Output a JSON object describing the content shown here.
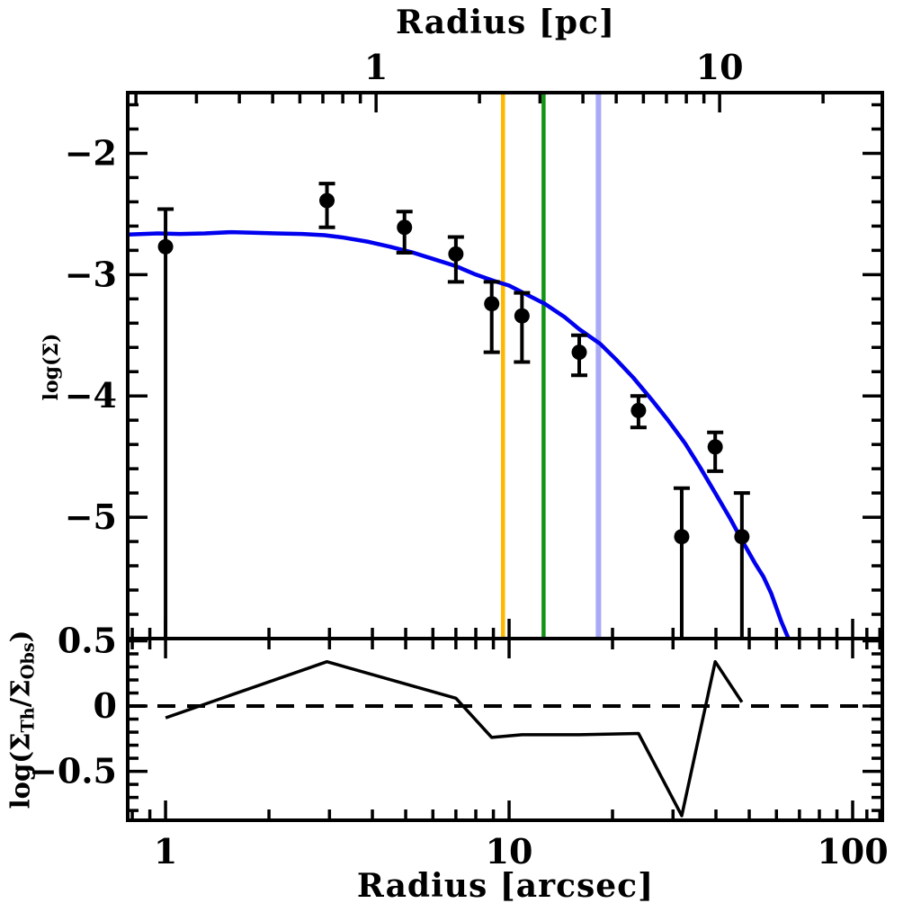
{
  "colors": {
    "background": "#ffffff",
    "axis": "#000000",
    "model_curve": "#0000ee",
    "data_points": "#000000",
    "residual_curve": "#000000",
    "vline_orange": "#ffb800",
    "vline_green": "#149414",
    "vline_lavender": "#a9a9f7"
  },
  "labels": {
    "top_axis_title": "Radius [pc]",
    "bottom_axis_title": "Radius [arcsec]",
    "main_y_title": "log(Σ)",
    "residual_y_title": {
      "prefix": "log(Σ",
      "sub1": "Th",
      "mid": "/Σ",
      "sub2": "Obs",
      "suffix": ")"
    }
  },
  "chart_data": [
    {
      "panel": "main",
      "type": "scatter",
      "x_scale": "log",
      "x_unit": "arcsec",
      "xlim": [
        0.776,
        122
      ],
      "ylim": [
        -6.0,
        -1.5
      ],
      "grid": false,
      "x_ticks": {
        "major": [
          1,
          10,
          100
        ],
        "labels": [
          "1",
          "10",
          "100"
        ]
      },
      "top_axis": {
        "unit": "pc",
        "arcsec_per_pc": 4.1,
        "major": [
          1,
          10
        ],
        "labels": [
          "1",
          "10"
        ]
      },
      "y_ticks": {
        "major": [
          -2,
          -3,
          -4,
          -5
        ],
        "labels": [
          "−2",
          "−3",
          "−4",
          "−5"
        ],
        "minor_step": 0.2
      },
      "points": [
        {
          "r": 1.0,
          "v": -2.77,
          "hi": -2.46,
          "lo": -6.0,
          "lo_to_edge": true
        },
        {
          "r": 2.95,
          "v": -2.39,
          "hi": -2.25,
          "lo": -2.61,
          "lo_to_edge": false
        },
        {
          "r": 4.96,
          "v": -2.61,
          "hi": -2.48,
          "lo": -2.82,
          "lo_to_edge": false
        },
        {
          "r": 7.0,
          "v": -2.83,
          "hi": -2.69,
          "lo": -3.06,
          "lo_to_edge": false
        },
        {
          "r": 8.9,
          "v": -3.24,
          "hi": -3.06,
          "lo": -3.64,
          "lo_to_edge": false
        },
        {
          "r": 10.9,
          "v": -3.34,
          "hi": -3.15,
          "lo": -3.72,
          "lo_to_edge": false
        },
        {
          "r": 16.0,
          "v": -3.64,
          "hi": -3.5,
          "lo": -3.83,
          "lo_to_edge": false
        },
        {
          "r": 23.8,
          "v": -4.12,
          "hi": -4.0,
          "lo": -4.26,
          "lo_to_edge": false
        },
        {
          "r": 31.8,
          "v": -5.16,
          "hi": -4.76,
          "lo": -6.0,
          "lo_to_edge": true
        },
        {
          "r": 39.8,
          "v": -4.42,
          "hi": -4.3,
          "lo": -4.62,
          "lo_to_edge": false
        },
        {
          "r": 47.6,
          "v": -5.16,
          "hi": -4.8,
          "lo": -6.0,
          "lo_to_edge": true
        }
      ],
      "model_curve": [
        [
          0.78,
          -2.67
        ],
        [
          0.95,
          -2.66
        ],
        [
          1.1,
          -2.665
        ],
        [
          1.3,
          -2.66
        ],
        [
          1.55,
          -2.65
        ],
        [
          1.8,
          -2.655
        ],
        [
          2.1,
          -2.66
        ],
        [
          2.5,
          -2.665
        ],
        [
          2.9,
          -2.675
        ],
        [
          3.3,
          -2.695
        ],
        [
          3.9,
          -2.73
        ],
        [
          4.5,
          -2.77
        ],
        [
          5.2,
          -2.815
        ],
        [
          6.0,
          -2.87
        ],
        [
          7.0,
          -2.93
        ],
        [
          8.0,
          -3.0
        ],
        [
          9.0,
          -3.05
        ],
        [
          10.0,
          -3.09
        ],
        [
          11.0,
          -3.15
        ],
        [
          12.7,
          -3.24
        ],
        [
          14.5,
          -3.35
        ],
        [
          16.0,
          -3.45
        ],
        [
          18.4,
          -3.57
        ],
        [
          20.5,
          -3.7
        ],
        [
          23.0,
          -3.85
        ],
        [
          26.0,
          -4.03
        ],
        [
          29.0,
          -4.2
        ],
        [
          32.5,
          -4.39
        ],
        [
          36.0,
          -4.59
        ],
        [
          39.8,
          -4.8
        ],
        [
          44.0,
          -5.01
        ],
        [
          47.6,
          -5.19
        ],
        [
          52.0,
          -5.38
        ],
        [
          55.0,
          -5.49
        ],
        [
          58.0,
          -5.63
        ],
        [
          62.0,
          -5.86
        ],
        [
          65.5,
          -6.02
        ]
      ],
      "vlines": [
        {
          "r": 9.6,
          "color": "#ffb800",
          "width": 4.5,
          "name": "vline-orange"
        },
        {
          "r": 12.6,
          "color": "#149414",
          "width": 4.5,
          "name": "vline-green"
        },
        {
          "r": 18.2,
          "color": "#a9a9f7",
          "width": 6,
          "name": "vline-lavender"
        }
      ]
    },
    {
      "panel": "residual",
      "type": "line",
      "x_scale": "log",
      "x_unit": "arcsec",
      "xlim": [
        0.776,
        122
      ],
      "ylim": [
        -0.875,
        0.517
      ],
      "grid": false,
      "y_ticks": {
        "major": [
          0.5,
          0,
          -0.5
        ],
        "labels": [
          "0.5",
          "0",
          "−0.5"
        ],
        "minor_step": 0.1
      },
      "zero_line": 0,
      "curve": [
        [
          1.0,
          -0.09
        ],
        [
          2.95,
          0.34
        ],
        [
          7.0,
          0.06
        ],
        [
          8.9,
          -0.24
        ],
        [
          10.9,
          -0.22
        ],
        [
          16.0,
          -0.22
        ],
        [
          23.8,
          -0.21
        ],
        [
          31.8,
          -0.84
        ],
        [
          39.8,
          0.34
        ],
        [
          47.6,
          0.03
        ]
      ]
    }
  ]
}
